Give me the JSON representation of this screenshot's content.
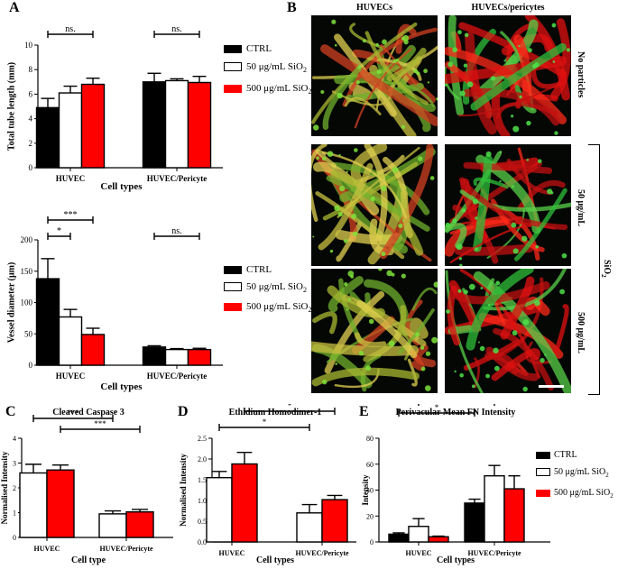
{
  "panel_labels": {
    "A": "A",
    "B": "B",
    "C": "C",
    "D": "D",
    "E": "E"
  },
  "panelB": {
    "col_huvec": "HUVECs",
    "col_huvec_pericytes": "HUVECs/pericytes",
    "row_no_particles": "No particles",
    "row_50": "50 μg/mL",
    "row_500": "500 μg/mL",
    "sio2_main": "SiO",
    "sio2_sub": "2"
  },
  "legend": {
    "ctrl": "CTRL",
    "l50_main": "50 μg/mL SiO",
    "l500_main": "500 μg/mL SiO",
    "sub": "2"
  },
  "colors": {
    "ctrl": "#000000",
    "s50": "#ffffff",
    "s500": "#ff0000"
  },
  "chart_data": [
    {
      "id": "A1",
      "type": "bar",
      "ylabel": "Total tube length (mm)",
      "xlabel": "Cell types",
      "ylim": [
        0,
        10
      ],
      "yticks": [
        0,
        2,
        4,
        6,
        8,
        10
      ],
      "categories": [
        "HUVEC",
        "HUVEC/Pericyte"
      ],
      "series": [
        {
          "name": "CTRL",
          "values": [
            4.9,
            7.0
          ],
          "errors": [
            0.75,
            0.7
          ]
        },
        {
          "name": "50 μg/mL SiO2",
          "values": [
            6.1,
            7.1
          ],
          "errors": [
            0.55,
            0.15
          ]
        },
        {
          "name": "500 μg/mL SiO2",
          "values": [
            6.8,
            6.95
          ],
          "errors": [
            0.5,
            0.5
          ]
        }
      ],
      "significance": [
        {
          "label": "ns.",
          "group": 0
        },
        {
          "label": "ns.",
          "group": 1
        }
      ]
    },
    {
      "id": "A2",
      "type": "bar",
      "ylabel": "Vessel diameter (μm)",
      "xlabel": "Cell types",
      "ylim": [
        0,
        200
      ],
      "yticks": [
        0,
        50,
        100,
        150,
        200
      ],
      "categories": [
        "HUVEC",
        "HUVEC/Pericyte"
      ],
      "series": [
        {
          "name": "CTRL",
          "values": [
            138,
            29
          ],
          "errors": [
            32,
            2
          ]
        },
        {
          "name": "50 μg/mL SiO2",
          "values": [
            77,
            25
          ],
          "errors": [
            12,
            1.5
          ]
        },
        {
          "name": "500 μg/mL SiO2",
          "values": [
            49,
            25
          ],
          "errors": [
            10,
            2
          ]
        }
      ],
      "significance": [
        {
          "label": "***",
          "pair": "HUVEC CTRL vs 500"
        },
        {
          "label": "*",
          "pair": "HUVEC CTRL vs 50"
        },
        {
          "label": "ns.",
          "group": 1
        }
      ]
    },
    {
      "id": "C",
      "type": "bar",
      "title": "Cleaved Caspase 3",
      "ylabel": "Normalised Intensity",
      "xlabel": "Cell type",
      "ylim": [
        0,
        4
      ],
      "yticks": [
        0,
        1,
        2,
        3,
        4
      ],
      "categories": [
        "HUVEC",
        "HUVEC/Pericyte"
      ],
      "series": [
        {
          "name": "50 μg/mL SiO2",
          "values": [
            2.6,
            0.95
          ],
          "errors": [
            0.35,
            0.12
          ]
        },
        {
          "name": "500 μg/mL SiO2",
          "values": [
            2.72,
            1.03
          ],
          "errors": [
            0.2,
            0.1
          ]
        }
      ],
      "significance": [
        {
          "label": "***",
          "pair": "HUVEC 50 vs Pericyte 50"
        },
        {
          "label": "***",
          "pair": "HUVEC 500 vs Pericyte 500"
        }
      ]
    },
    {
      "id": "D",
      "type": "bar",
      "title": "Ethidium Homodimer-1",
      "ylabel": "Normalised Intensity",
      "xlabel": "Cell types",
      "ylim": [
        0,
        2.5
      ],
      "yticks": [
        0.0,
        0.5,
        1.0,
        1.5,
        2.0,
        2.5
      ],
      "categories": [
        "HUVEC",
        "HUVEC/Pericyte"
      ],
      "series": [
        {
          "name": "50 μg/mL SiO2",
          "values": [
            1.55,
            0.7
          ],
          "errors": [
            0.15,
            0.2
          ]
        },
        {
          "name": "500 μg/mL SiO2",
          "values": [
            1.88,
            1.02
          ],
          "errors": [
            0.28,
            0.1
          ]
        }
      ],
      "significance": [
        {
          "label": "*",
          "pair": "HUVEC 50 vs Pericyte 50"
        },
        {
          "label": "*",
          "pair": "HUVEC 500 vs Pericyte 500"
        }
      ]
    },
    {
      "id": "E",
      "type": "bar",
      "title": "Perivacular Mean FN Intensity",
      "ylabel": "Intensity",
      "xlabel": "Cell types",
      "ylim": [
        0,
        80
      ],
      "yticks": [
        0,
        20,
        40,
        60,
        80
      ],
      "categories": [
        "HUVEC",
        "HUVEC/Pericyte"
      ],
      "series": [
        {
          "name": "CTRL",
          "values": [
            6,
            30
          ],
          "errors": [
            1,
            3
          ]
        },
        {
          "name": "50 μg/mL SiO2",
          "values": [
            12,
            51
          ],
          "errors": [
            6,
            8
          ]
        },
        {
          "name": "500 μg/mL SiO2",
          "values": [
            4,
            41
          ],
          "errors": [
            0.5,
            10
          ]
        }
      ],
      "significance": [
        {
          "label": "*",
          "pair": "HUVEC CTRL vs Pericyte CTRL"
        },
        {
          "label": "**",
          "pair": "HUVEC 50 vs Pericyte 50"
        },
        {
          "label": "**",
          "pair": "HUVEC 500 vs Pericyte 500"
        }
      ]
    }
  ]
}
